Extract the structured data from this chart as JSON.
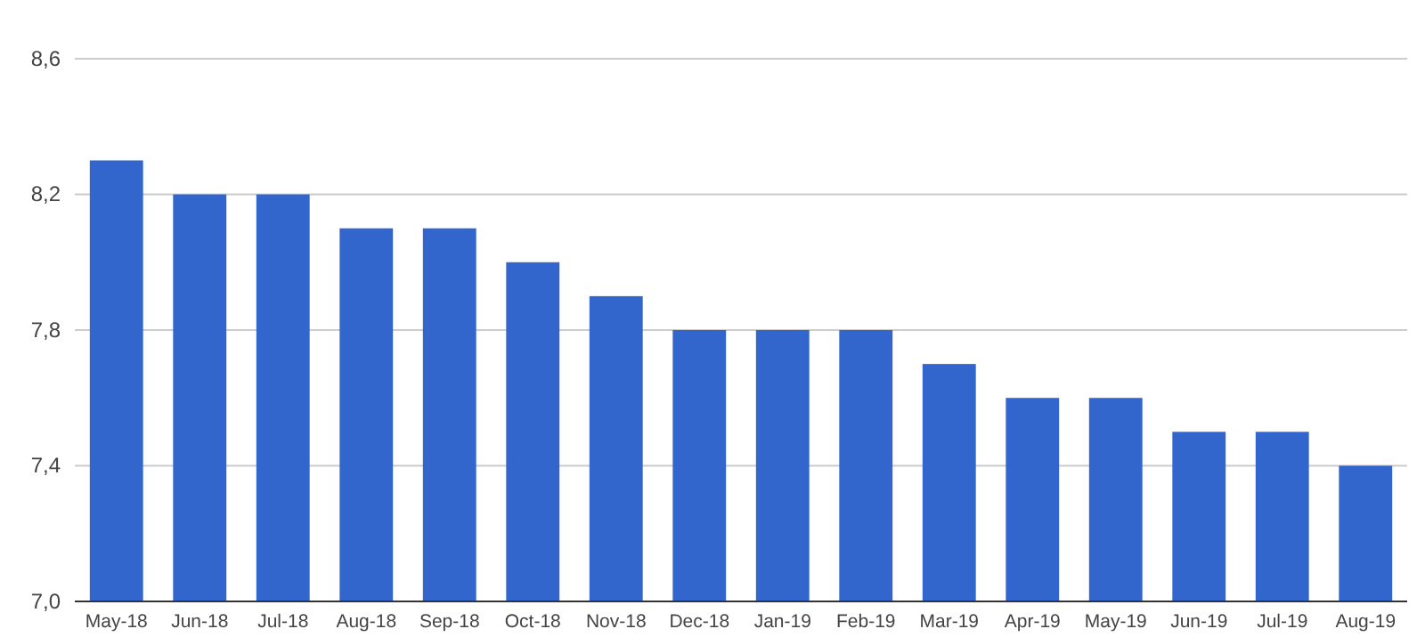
{
  "chart_data": {
    "type": "bar",
    "categories": [
      "May-18",
      "Jun-18",
      "Jul-18",
      "Aug-18",
      "Sep-18",
      "Oct-18",
      "Nov-18",
      "Dec-18",
      "Jan-19",
      "Feb-19",
      "Mar-19",
      "Apr-19",
      "May-19",
      "Jun-19",
      "Jul-19",
      "Aug-19"
    ],
    "values": [
      8.3,
      8.2,
      8.2,
      8.1,
      8.1,
      8.0,
      7.9,
      7.8,
      7.8,
      7.8,
      7.7,
      7.6,
      7.6,
      7.5,
      7.5,
      7.4
    ],
    "color": "#3366cc",
    "ylim": [
      7.0,
      8.6
    ],
    "yticks": [
      {
        "value": 7.0,
        "label": "7,0"
      },
      {
        "value": 7.4,
        "label": "7,4"
      },
      {
        "value": 7.8,
        "label": "7,8"
      },
      {
        "value": 8.2,
        "label": "8,2"
      },
      {
        "value": 8.6,
        "label": "8,6"
      }
    ],
    "grid": "y"
  }
}
